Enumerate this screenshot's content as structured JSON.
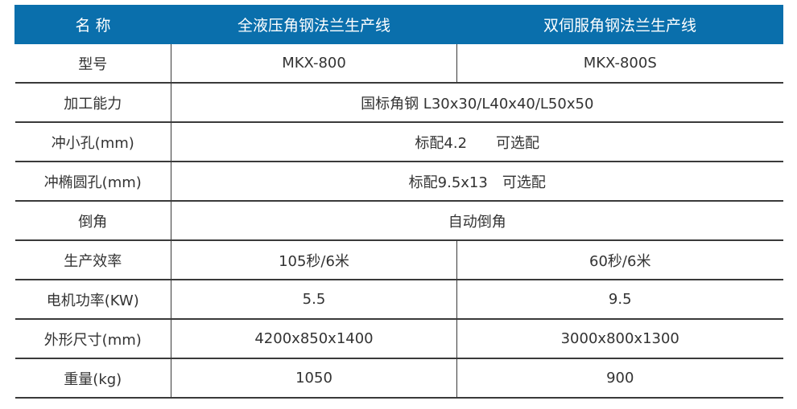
{
  "header": {
    "name": "名 称",
    "col1": "全液压角钢法兰生产线",
    "col2": "双伺服角钢法兰生产线"
  },
  "rows": [
    {
      "label": "型号",
      "v1": "MKX-800",
      "v2": "MKX-800S"
    },
    {
      "label": "加工能力",
      "merged": "国标角钢 L30x30/L40x40/L50x50"
    },
    {
      "label": "冲小孔(mm)",
      "merged": "标配4.2　　可选配"
    },
    {
      "label": "冲椭圆孔(mm)",
      "merged": "标配9.5x13　可选配"
    },
    {
      "label": "倒角",
      "merged": "自动倒角"
    },
    {
      "label": "生产效率",
      "v1": "105秒/6米",
      "v2": "60秒/6米"
    },
    {
      "label": "电机功率(KW)",
      "v1": "5.5",
      "v2": "9.5"
    },
    {
      "label": "外形尺寸(mm)",
      "v1": "4200x850x1400",
      "v2": "3000x800x1300"
    },
    {
      "label": "重量(kg)",
      "v1": "1050",
      "v2": "900"
    }
  ],
  "colors": {
    "header": "#0a6fac",
    "text": "#333333"
  }
}
